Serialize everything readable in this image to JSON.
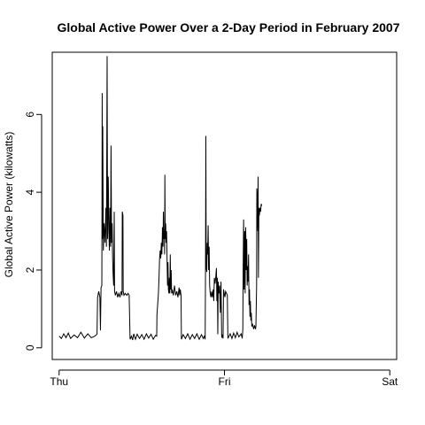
{
  "chart_data": {
    "type": "line",
    "title": "Global Active Power Over a 2-Day Period in February 2007",
    "xlabel": "",
    "ylabel": "Global Active Power (kilowatts)",
    "x_ticks": [
      {
        "label": "Thu",
        "value": 0
      },
      {
        "label": "Fri",
        "value": 1440
      },
      {
        "label": "Sat",
        "value": 2880
      }
    ],
    "y_ticks": [
      0,
      2,
      4,
      6
    ],
    "ylim": [
      -0.3,
      7.6
    ],
    "xlim": [
      -60,
      2940
    ],
    "grid": false,
    "series": [
      {
        "color": "#000000",
        "points": [
          [
            0,
            0.3
          ],
          [
            20,
            0.24
          ],
          [
            40,
            0.36
          ],
          [
            60,
            0.26
          ],
          [
            80,
            0.38
          ],
          [
            100,
            0.24
          ],
          [
            130,
            0.33
          ],
          [
            160,
            0.26
          ],
          [
            190,
            0.4
          ],
          [
            220,
            0.25
          ],
          [
            250,
            0.36
          ],
          [
            280,
            0.26
          ],
          [
            310,
            0.3
          ],
          [
            330,
            0.35
          ],
          [
            335,
            1.3
          ],
          [
            345,
            1.45
          ],
          [
            355,
            1.3
          ],
          [
            360,
            0.45
          ],
          [
            365,
            1.55
          ],
          [
            372,
            1.6
          ],
          [
            375,
            6.55
          ],
          [
            378,
            2.8
          ],
          [
            380,
            5.7
          ],
          [
            385,
            2.5
          ],
          [
            392,
            3.2
          ],
          [
            400,
            2.7
          ],
          [
            407,
            3.6
          ],
          [
            412,
            2.6
          ],
          [
            418,
            7.5
          ],
          [
            422,
            2.8
          ],
          [
            428,
            4.4
          ],
          [
            433,
            3.0
          ],
          [
            438,
            2.5
          ],
          [
            442,
            3.6
          ],
          [
            448,
            2.6
          ],
          [
            452,
            5.2
          ],
          [
            457,
            2.7
          ],
          [
            462,
            3.2
          ],
          [
            466,
            2.3
          ],
          [
            470,
            1.9
          ],
          [
            475,
            1.6
          ],
          [
            480,
            3.5
          ],
          [
            483,
            1.45
          ],
          [
            490,
            1.35
          ],
          [
            500,
            1.45
          ],
          [
            510,
            1.3
          ],
          [
            520,
            1.4
          ],
          [
            530,
            1.3
          ],
          [
            540,
            1.45
          ],
          [
            548,
            1.35
          ],
          [
            550,
            3.5
          ],
          [
            556,
            3.4
          ],
          [
            558,
            1.45
          ],
          [
            565,
            1.35
          ],
          [
            575,
            1.4
          ],
          [
            590,
            1.35
          ],
          [
            600,
            1.4
          ],
          [
            610,
            1.35
          ],
          [
            618,
            0.22
          ],
          [
            630,
            0.3
          ],
          [
            640,
            0.2
          ],
          [
            650,
            0.36
          ],
          [
            665,
            0.22
          ],
          [
            680,
            0.35
          ],
          [
            700,
            0.24
          ],
          [
            720,
            0.34
          ],
          [
            740,
            0.22
          ],
          [
            760,
            0.36
          ],
          [
            780,
            0.25
          ],
          [
            800,
            0.35
          ],
          [
            820,
            0.22
          ],
          [
            840,
            0.32
          ],
          [
            850,
            0.3
          ],
          [
            852,
            0.85
          ],
          [
            858,
            1.1
          ],
          [
            865,
            1.4
          ],
          [
            870,
            1.8
          ],
          [
            875,
            2.3
          ],
          [
            880,
            2.5
          ],
          [
            885,
            2.3
          ],
          [
            890,
            2.7
          ],
          [
            895,
            2.4
          ],
          [
            900,
            3.1
          ],
          [
            905,
            2.6
          ],
          [
            908,
            3.5
          ],
          [
            912,
            2.8
          ],
          [
            916,
            3.0
          ],
          [
            919,
            2.4
          ],
          [
            921,
            4.45
          ],
          [
            924,
            2.8
          ],
          [
            928,
            3.2
          ],
          [
            932,
            2.7
          ],
          [
            936,
            3.0
          ],
          [
            940,
            2.3
          ],
          [
            944,
            1.6
          ],
          [
            948,
            2.2
          ],
          [
            952,
            1.5
          ],
          [
            956,
            1.4
          ],
          [
            960,
            1.8
          ],
          [
            964,
            1.4
          ],
          [
            968,
            2.4
          ],
          [
            972,
            1.5
          ],
          [
            976,
            2.0
          ],
          [
            980,
            1.4
          ],
          [
            985,
            1.5
          ],
          [
            995,
            1.35
          ],
          [
            1005,
            1.6
          ],
          [
            1015,
            1.35
          ],
          [
            1025,
            1.45
          ],
          [
            1035,
            1.3
          ],
          [
            1045,
            1.55
          ],
          [
            1050,
            1.35
          ],
          [
            1055,
            1.5
          ],
          [
            1062,
            1.35
          ],
          [
            1065,
            0.22
          ],
          [
            1080,
            0.34
          ],
          [
            1100,
            0.24
          ],
          [
            1120,
            0.36
          ],
          [
            1140,
            0.22
          ],
          [
            1160,
            0.34
          ],
          [
            1180,
            0.24
          ],
          [
            1200,
            0.36
          ],
          [
            1220,
            0.22
          ],
          [
            1240,
            0.34
          ],
          [
            1255,
            0.24
          ],
          [
            1265,
            0.3
          ],
          [
            1272,
            0.22
          ],
          [
            1275,
            2.0
          ],
          [
            1278,
            5.45
          ],
          [
            1281,
            2.1
          ],
          [
            1286,
            1.95
          ],
          [
            1290,
            2.7
          ],
          [
            1294,
            2.4
          ],
          [
            1298,
            3.15
          ],
          [
            1302,
            2.0
          ],
          [
            1307,
            2.6
          ],
          [
            1311,
            1.6
          ],
          [
            1316,
            1.4
          ],
          [
            1322,
            1.3
          ],
          [
            1328,
            1.45
          ],
          [
            1335,
            1.3
          ],
          [
            1342,
            1.5
          ],
          [
            1347,
            1.2
          ],
          [
            1352,
            1.8
          ],
          [
            1358,
            1.65
          ],
          [
            1364,
            1.8
          ],
          [
            1370,
            2.05
          ],
          [
            1374,
            1.2
          ],
          [
            1378,
            1.8
          ],
          [
            1382,
            0.35
          ],
          [
            1386,
            1.7
          ],
          [
            1392,
            1.4
          ],
          [
            1398,
            1.6
          ],
          [
            1404,
            0.9
          ],
          [
            1410,
            1.7
          ],
          [
            1416,
            0.26
          ],
          [
            1422,
            0.34
          ],
          [
            1428,
            0.24
          ],
          [
            1432,
            1.5
          ],
          [
            1438,
            1.4
          ],
          [
            1444,
            1.3
          ],
          [
            1450,
            1.45
          ],
          [
            1458,
            1.4
          ],
          [
            1465,
            1.35
          ],
          [
            1470,
            0.24
          ],
          [
            1490,
            0.36
          ],
          [
            1505,
            0.24
          ],
          [
            1520,
            0.38
          ],
          [
            1535,
            0.26
          ],
          [
            1550,
            0.4
          ],
          [
            1565,
            0.28
          ],
          [
            1585,
            0.36
          ],
          [
            1595,
            0.24
          ],
          [
            1600,
            0.48
          ],
          [
            1603,
            2.1
          ],
          [
            1607,
            3.3
          ],
          [
            1611,
            1.5
          ],
          [
            1616,
            3.0
          ],
          [
            1620,
            1.4
          ],
          [
            1625,
            3.1
          ],
          [
            1630,
            2.0
          ],
          [
            1634,
            2.8
          ],
          [
            1638,
            1.6
          ],
          [
            1642,
            2.1
          ],
          [
            1646,
            1.7
          ],
          [
            1650,
            2.4
          ],
          [
            1654,
            1.1
          ],
          [
            1658,
            1.5
          ],
          [
            1662,
            0.8
          ],
          [
            1666,
            1.2
          ],
          [
            1670,
            0.7
          ],
          [
            1674,
            0.9
          ],
          [
            1678,
            0.55
          ],
          [
            1686,
            0.6
          ],
          [
            1694,
            0.48
          ],
          [
            1702,
            0.58
          ],
          [
            1710,
            0.48
          ],
          [
            1714,
            0.55
          ],
          [
            1716,
            0.9
          ],
          [
            1720,
            1.6
          ],
          [
            1722,
            4.1
          ],
          [
            1726,
            3.8
          ],
          [
            1730,
            3.0
          ],
          [
            1733,
            4.4
          ],
          [
            1736,
            1.8
          ],
          [
            1740,
            3.6
          ],
          [
            1744,
            3.4
          ],
          [
            1750,
            3.6
          ],
          [
            1755,
            3.5
          ],
          [
            1760,
            3.7
          ],
          [
            1765,
            3.65
          ]
        ]
      }
    ]
  }
}
